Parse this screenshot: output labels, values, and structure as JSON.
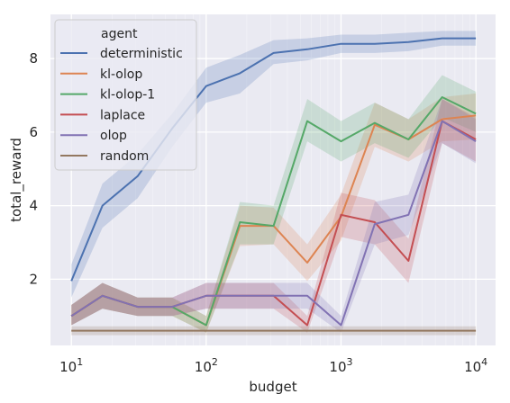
{
  "chart_data": {
    "type": "line",
    "xlabel": "budget",
    "ylabel": "total_reward",
    "xscale": "log",
    "xlim": [
      7,
      14000
    ],
    "ylim": [
      0.2,
      9.2
    ],
    "grid": true,
    "legend": {
      "placement": "top-left",
      "title": "agent"
    },
    "x_ticks": [
      10,
      100,
      1000,
      10000
    ],
    "x_tick_labels": [
      {
        "base": "10",
        "exp": "1"
      },
      {
        "base": "10",
        "exp": "2"
      },
      {
        "base": "10",
        "exp": "3"
      },
      {
        "base": "10",
        "exp": "4"
      }
    ],
    "y_ticks": [
      2,
      4,
      6,
      8
    ],
    "y_tick_labels": [
      "2",
      "4",
      "6",
      "8"
    ],
    "x": [
      10,
      17,
      31,
      56,
      100,
      178,
      316,
      562,
      1000,
      1778,
      3162,
      5623,
      10000
    ],
    "series": [
      {
        "name": "deterministic",
        "color": "#4c72b0",
        "values": [
          1.95,
          4.0,
          4.8,
          6.1,
          7.25,
          7.6,
          8.15,
          8.25,
          8.4,
          8.4,
          8.45,
          8.55,
          8.55
        ],
        "lower": [
          1.5,
          3.4,
          4.2,
          5.6,
          6.8,
          7.05,
          7.85,
          7.95,
          8.15,
          8.15,
          8.2,
          8.35,
          8.35
        ],
        "upper": [
          2.4,
          4.6,
          5.4,
          6.5,
          7.75,
          8.1,
          8.5,
          8.55,
          8.65,
          8.65,
          8.7,
          8.75,
          8.75
        ]
      },
      {
        "name": "kl-olop",
        "color": "#dd8452",
        "values": [
          1.0,
          1.55,
          1.25,
          1.25,
          0.75,
          3.45,
          3.45,
          2.45,
          3.7,
          6.2,
          5.8,
          6.35,
          6.45
        ],
        "lower": [
          0.75,
          1.2,
          1.0,
          1.0,
          0.55,
          2.9,
          2.95,
          1.95,
          3.05,
          5.6,
          5.2,
          5.75,
          5.8
        ],
        "upper": [
          1.3,
          1.9,
          1.5,
          1.5,
          1.0,
          4.0,
          3.95,
          2.95,
          4.3,
          6.8,
          6.35,
          6.95,
          7.05
        ]
      },
      {
        "name": "kl-olop-1",
        "color": "#55a868",
        "values": [
          1.0,
          1.55,
          1.25,
          1.25,
          0.75,
          3.55,
          3.45,
          6.3,
          5.75,
          6.25,
          5.8,
          6.95,
          6.5
        ],
        "lower": [
          0.75,
          1.2,
          1.0,
          1.0,
          0.55,
          2.95,
          2.95,
          5.75,
          5.2,
          5.7,
          5.3,
          6.4,
          6.0
        ],
        "upper": [
          1.3,
          1.9,
          1.5,
          1.5,
          1.0,
          4.1,
          4.0,
          6.9,
          6.3,
          6.8,
          6.35,
          7.55,
          7.1
        ]
      },
      {
        "name": "laplace",
        "color": "#c44e52",
        "values": [
          1.0,
          1.55,
          1.25,
          1.25,
          1.55,
          1.55,
          1.55,
          0.75,
          3.75,
          3.55,
          2.5,
          6.3,
          5.8
        ],
        "lower": [
          0.75,
          1.2,
          1.0,
          1.0,
          1.2,
          1.2,
          1.2,
          0.55,
          3.15,
          2.95,
          1.9,
          5.7,
          5.2
        ],
        "upper": [
          1.3,
          1.9,
          1.5,
          1.5,
          1.9,
          1.9,
          1.9,
          1.0,
          4.35,
          4.15,
          3.1,
          6.9,
          6.4
        ]
      },
      {
        "name": "olop",
        "color": "#8172b3",
        "values": [
          1.0,
          1.55,
          1.25,
          1.25,
          1.55,
          1.55,
          1.55,
          1.55,
          0.75,
          3.5,
          3.75,
          6.3,
          5.75
        ],
        "lower": [
          0.75,
          1.2,
          1.0,
          1.0,
          1.2,
          1.2,
          1.2,
          1.2,
          0.55,
          2.95,
          3.2,
          5.7,
          5.15
        ],
        "upper": [
          1.3,
          1.9,
          1.5,
          1.5,
          1.9,
          1.9,
          1.9,
          1.9,
          1.0,
          4.1,
          4.3,
          6.9,
          6.35
        ]
      },
      {
        "name": "random",
        "color": "#937860",
        "values": [
          0.6,
          0.6,
          0.6,
          0.6,
          0.6,
          0.6,
          0.6,
          0.6,
          0.6,
          0.6,
          0.6,
          0.6,
          0.6
        ],
        "lower": [
          0.48,
          0.48,
          0.48,
          0.48,
          0.48,
          0.48,
          0.48,
          0.48,
          0.48,
          0.48,
          0.48,
          0.48,
          0.48
        ],
        "upper": [
          0.72,
          0.72,
          0.72,
          0.72,
          0.72,
          0.72,
          0.72,
          0.72,
          0.72,
          0.72,
          0.72,
          0.72,
          0.72
        ]
      }
    ]
  }
}
